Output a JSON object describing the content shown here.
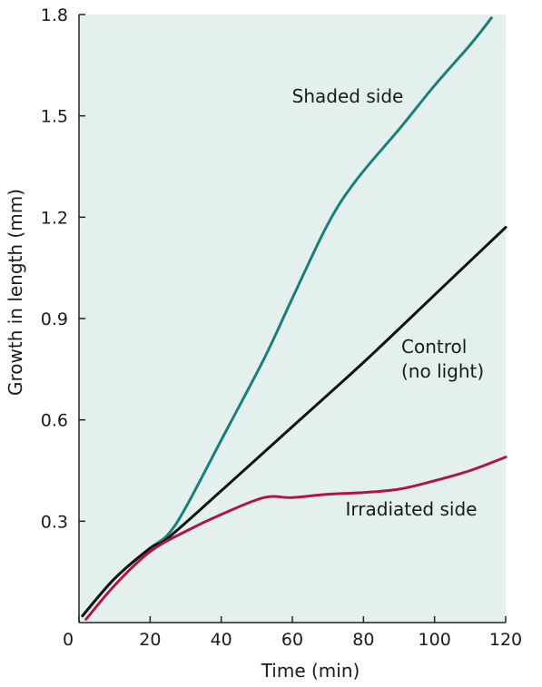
{
  "chart_data": {
    "type": "line",
    "title": "",
    "xlabel": "Time (min)",
    "ylabel": "Growth in length (mm)",
    "xlim": [
      0,
      120
    ],
    "ylim": [
      0,
      1.8
    ],
    "x_ticks": [
      0,
      20,
      40,
      60,
      80,
      100,
      120
    ],
    "x_tick_labels": [
      "0",
      "20",
      "40",
      "60",
      "80",
      "100",
      "120"
    ],
    "y_ticks": [
      0.3,
      0.6,
      0.9,
      1.2,
      1.5,
      1.8
    ],
    "y_tick_labels": [
      "0.3",
      "0.6",
      "0.9",
      "1.2",
      "1.5",
      "1.8"
    ],
    "grid": false,
    "plot_background": "#e4f0ee",
    "series": [
      {
        "name": "Shaded side",
        "color": "#1a7f7a",
        "x": [
          1,
          10,
          20,
          25,
          30,
          40,
          52,
          60,
          70,
          78,
          90,
          100,
          110,
          116
        ],
        "y": [
          0.02,
          0.13,
          0.22,
          0.26,
          0.34,
          0.54,
          0.78,
          0.96,
          1.18,
          1.31,
          1.46,
          1.59,
          1.71,
          1.79
        ]
      },
      {
        "name": "Control\n(no light)",
        "color": "#111111",
        "x": [
          1,
          10,
          20,
          25,
          40,
          60,
          80,
          100,
          120
        ],
        "y": [
          0.02,
          0.13,
          0.22,
          0.25,
          0.39,
          0.58,
          0.77,
          0.97,
          1.17
        ]
      },
      {
        "name": "Irradiated side",
        "color": "#b0144a",
        "x": [
          2,
          10,
          20,
          30,
          40,
          52,
          60,
          70,
          80,
          90,
          100,
          110,
          120
        ],
        "y": [
          0.01,
          0.11,
          0.21,
          0.27,
          0.32,
          0.37,
          0.37,
          0.38,
          0.385,
          0.395,
          0.42,
          0.45,
          0.49
        ]
      }
    ]
  }
}
